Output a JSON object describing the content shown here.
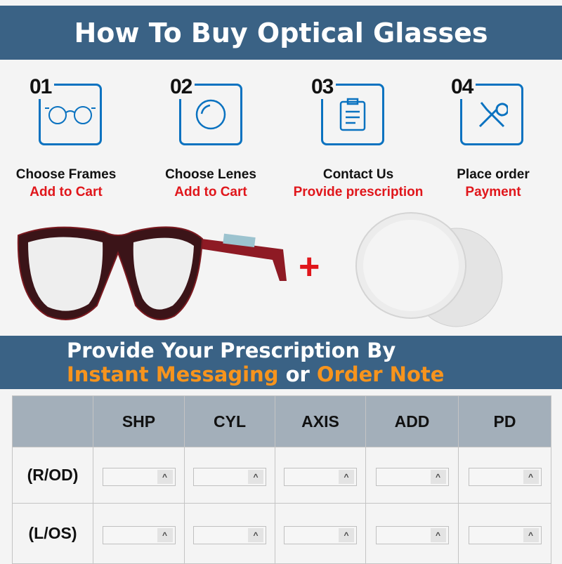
{
  "header": {
    "title": "How To Buy Optical Glasses"
  },
  "steps": [
    {
      "number": "01",
      "title": "Choose Frames",
      "action": "Add to Cart",
      "icon": "glasses-icon"
    },
    {
      "number": "02",
      "title": "Choose Lenes",
      "action": "Add to Cart",
      "icon": "lens-icon"
    },
    {
      "number": "03",
      "title": "Contact Us",
      "action": "Provide prescription",
      "icon": "clipboard-icon"
    },
    {
      "number": "04",
      "title": "Place order",
      "action": "Payment",
      "icon": "tools-icon"
    }
  ],
  "plus": "+",
  "banner": {
    "line1": "Provide Your Prescription By",
    "opt1": "Instant Messaging",
    "or": " or ",
    "opt2": "Order Note"
  },
  "table": {
    "columns": [
      "SHP",
      "CYL",
      "AXIS",
      "ADD",
      "PD"
    ],
    "rows": [
      "(R/OD)",
      "(L/OS)"
    ],
    "spin_glyph": "^"
  },
  "colors": {
    "band": "#3a6285",
    "accent": "#0a72c0",
    "red": "#e0161b",
    "orange": "#f7941d"
  }
}
